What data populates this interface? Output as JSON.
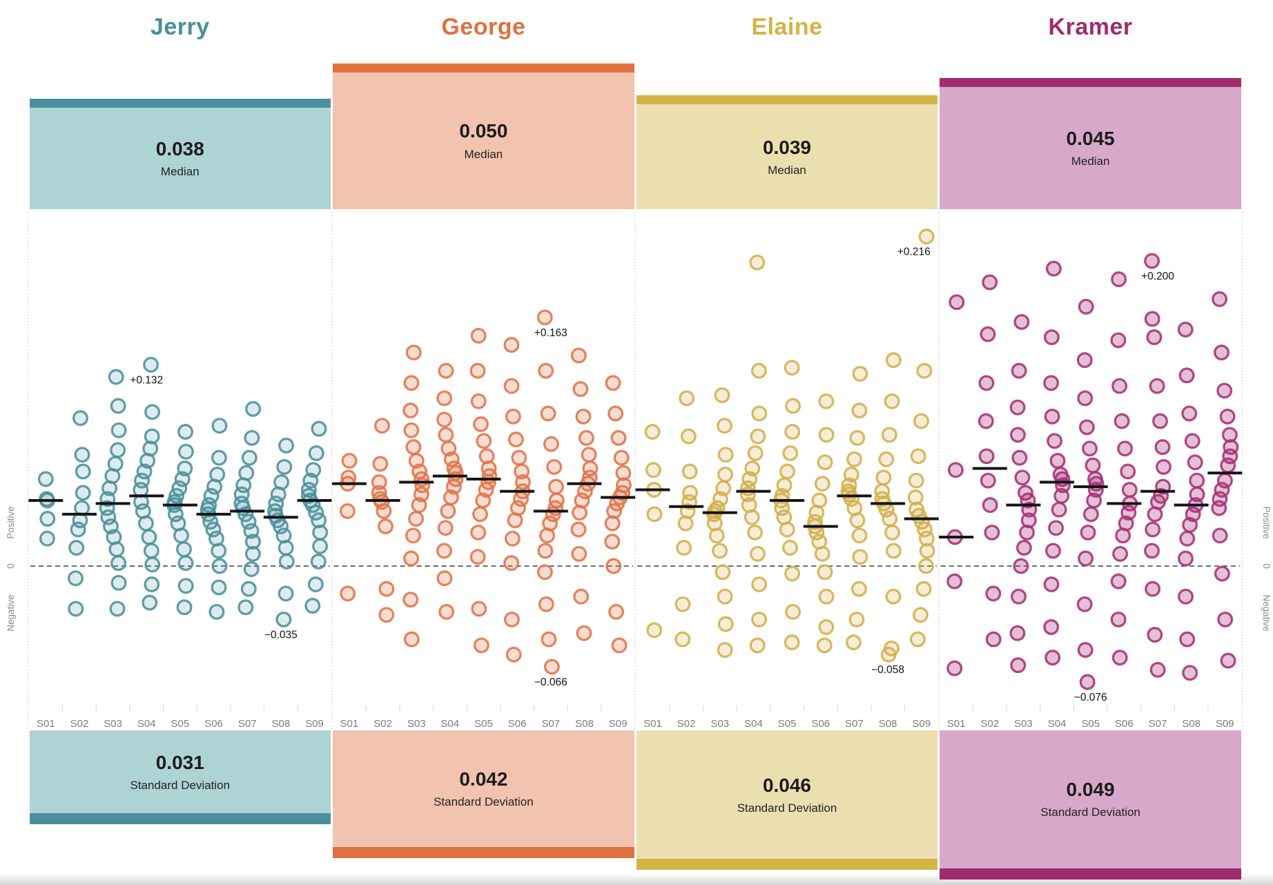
{
  "page": {
    "median_label": "Median",
    "sd_label": "Standard Deviation",
    "side_axis": {
      "positive": "Positive",
      "zero": "0",
      "negative": "Negative"
    }
  },
  "chart_data": {
    "type": "scatter",
    "subtype": "jitter-strip-plot",
    "seasons": [
      "S01",
      "S02",
      "S03",
      "S04",
      "S05",
      "S06",
      "S07",
      "S08",
      "S09"
    ],
    "value_axis": {
      "zero": 0,
      "approx_range": [
        -0.095,
        0.235
      ],
      "zero_line_style": "dashed"
    },
    "characters": [
      {
        "name": "Jerry",
        "median": "0.038",
        "std_dev": "0.031",
        "colors": {
          "dark": "#4A8F9B",
          "light": "#AED3D5",
          "point": "#4A8F9B"
        },
        "fill_opacity": 0.18,
        "season_medians": [
          0.043,
          0.034,
          0.041,
          0.046,
          0.04,
          0.034,
          0.036,
          0.032,
          0.043
        ],
        "season_points": [
          [
            0.057,
            0.044,
            0.043,
            0.031,
            0.018
          ],
          [
            0.097,
            0.073,
            0.062,
            0.048,
            0.038,
            0.03,
            0.024,
            0.012,
            -0.008,
            -0.028
          ],
          [
            0.124,
            0.105,
            0.089,
            0.076,
            0.067,
            0.059,
            0.051,
            0.044,
            0.038,
            0.032,
            0.026,
            0.019,
            0.011,
            0.002,
            -0.011,
            -0.028
          ],
          [
            0.132,
            0.101,
            0.085,
            0.077,
            0.069,
            0.062,
            0.056,
            0.05,
            0.042,
            0.036,
            0.028,
            0.019,
            0.01,
            0.001,
            -0.012,
            -0.024
          ],
          [
            0.088,
            0.075,
            0.064,
            0.057,
            0.051,
            0.046,
            0.042,
            0.04,
            0.034,
            0.028,
            0.02,
            0.011,
            0.002,
            -0.013,
            -0.027
          ],
          [
            0.092,
            0.071,
            0.06,
            0.052,
            0.046,
            0.04,
            0.037,
            0.034,
            0.029,
            0.024,
            0.018,
            0.01,
            0.0,
            -0.014,
            -0.03
          ],
          [
            0.103,
            0.084,
            0.071,
            0.061,
            0.053,
            0.047,
            0.041,
            0.038,
            0.034,
            0.029,
            0.023,
            0.016,
            0.008,
            -0.002,
            -0.015,
            -0.027
          ],
          [
            0.079,
            0.065,
            0.055,
            0.047,
            0.041,
            0.036,
            0.033,
            0.03,
            0.026,
            0.02,
            0.012,
            0.003,
            -0.018,
            -0.035
          ],
          [
            0.09,
            0.074,
            0.063,
            0.056,
            0.05,
            0.046,
            0.043,
            0.04,
            0.035,
            0.03,
            0.022,
            0.013,
            0.003,
            -0.012,
            -0.026
          ]
        ],
        "annotations": [
          {
            "label": "+0.132",
            "season_index": 3,
            "value": 0.132
          },
          {
            "label": "−0.035",
            "season_index": 7,
            "value": -0.035
          }
        ]
      },
      {
        "name": "George",
        "median": "0.050",
        "std_dev": "0.042",
        "colors": {
          "dark": "#E0713F",
          "light": "#F2C3AE",
          "point": "#DF744A"
        },
        "fill_opacity": 0.25,
        "season_medians": [
          0.054,
          0.043,
          0.055,
          0.059,
          0.057,
          0.049,
          0.036,
          0.054,
          0.045
        ],
        "season_points": [
          [
            0.069,
            0.058,
            0.054,
            0.036,
            -0.018
          ],
          [
            0.092,
            0.067,
            0.055,
            0.048,
            0.044,
            0.042,
            0.036,
            0.026,
            -0.015,
            -0.032
          ],
          [
            0.14,
            0.12,
            0.102,
            0.089,
            0.078,
            0.069,
            0.062,
            0.057,
            0.053,
            0.047,
            0.04,
            0.031,
            0.02,
            0.005,
            -0.022,
            -0.048
          ],
          [
            0.128,
            0.11,
            0.096,
            0.086,
            0.077,
            0.07,
            0.064,
            0.061,
            0.057,
            0.052,
            0.045,
            0.036,
            0.025,
            0.01,
            -0.008,
            -0.03
          ],
          [
            0.151,
            0.128,
            0.108,
            0.093,
            0.082,
            0.072,
            0.064,
            0.059,
            0.055,
            0.05,
            0.043,
            0.034,
            0.022,
            0.006,
            -0.028,
            -0.052
          ],
          [
            0.145,
            0.118,
            0.098,
            0.083,
            0.071,
            0.062,
            0.055,
            0.049,
            0.044,
            0.038,
            0.03,
            0.018,
            0.002,
            -0.035,
            -0.058
          ],
          [
            0.163,
            0.128,
            0.1,
            0.08,
            0.065,
            0.052,
            0.043,
            0.038,
            0.034,
            0.028,
            0.02,
            0.01,
            -0.004,
            -0.025,
            -0.048,
            -0.066
          ],
          [
            0.138,
            0.116,
            0.098,
            0.084,
            0.073,
            0.064,
            0.058,
            0.054,
            0.049,
            0.043,
            0.035,
            0.024,
            0.008,
            -0.02,
            -0.044
          ],
          [
            0.12,
            0.1,
            0.084,
            0.071,
            0.061,
            0.053,
            0.048,
            0.045,
            0.041,
            0.036,
            0.028,
            0.016,
            0.0,
            -0.03,
            -0.052
          ]
        ],
        "annotations": [
          {
            "label": "+0.163",
            "season_index": 6,
            "value": 0.163
          },
          {
            "label": "−0.066",
            "season_index": 6,
            "value": -0.066
          }
        ]
      },
      {
        "name": "Elaine",
        "median": "0.039",
        "std_dev": "0.046",
        "colors": {
          "dark": "#D4B345",
          "light": "#EBDFAF",
          "point": "#D3AF4B"
        },
        "fill_opacity": 0.22,
        "season_medians": [
          0.05,
          0.039,
          0.035,
          0.049,
          0.043,
          0.026,
          0.046,
          0.041,
          0.031
        ],
        "season_points": [
          [
            0.088,
            0.063,
            0.05,
            0.034,
            -0.042
          ],
          [
            0.11,
            0.085,
            0.062,
            0.048,
            0.042,
            0.036,
            0.028,
            0.012,
            -0.025,
            -0.048
          ],
          [
            0.112,
            0.092,
            0.073,
            0.06,
            0.051,
            0.044,
            0.038,
            0.036,
            0.034,
            0.028,
            0.02,
            0.01,
            -0.004,
            -0.02,
            -0.038,
            -0.055
          ],
          [
            0.199,
            0.128,
            0.1,
            0.085,
            0.074,
            0.064,
            0.057,
            0.051,
            0.047,
            0.04,
            0.032,
            0.022,
            0.008,
            -0.012,
            -0.035,
            -0.052
          ],
          [
            0.13,
            0.105,
            0.088,
            0.074,
            0.062,
            0.053,
            0.046,
            0.043,
            0.038,
            0.032,
            0.024,
            0.012,
            -0.005,
            -0.03,
            -0.05
          ],
          [
            0.108,
            0.086,
            0.068,
            0.054,
            0.043,
            0.035,
            0.029,
            0.026,
            0.022,
            0.016,
            0.008,
            -0.004,
            -0.02,
            -0.04,
            -0.052
          ],
          [
            0.126,
            0.102,
            0.084,
            0.07,
            0.06,
            0.053,
            0.049,
            0.047,
            0.044,
            0.038,
            0.03,
            0.02,
            0.006,
            -0.015,
            -0.035,
            -0.05
          ],
          [
            0.135,
            0.108,
            0.086,
            0.07,
            0.058,
            0.049,
            0.044,
            0.041,
            0.037,
            0.031,
            0.022,
            0.01,
            -0.02,
            -0.054,
            -0.058
          ],
          [
            0.216,
            0.128,
            0.095,
            0.072,
            0.056,
            0.045,
            0.037,
            0.033,
            0.029,
            0.024,
            0.018,
            0.01,
            0.0,
            -0.015,
            -0.032,
            -0.048
          ]
        ],
        "annotations": [
          {
            "label": "+0.216",
            "season_index": 8,
            "value": 0.216
          },
          {
            "label": "−0.058",
            "season_index": 7,
            "value": -0.058
          }
        ]
      },
      {
        "name": "Kramer",
        "median": "0.045",
        "std_dev": "0.049",
        "colors": {
          "dark": "#A02C6E",
          "light": "#D7A8C9",
          "point": "#A63076"
        },
        "fill_opacity": 0.3,
        "season_medians": [
          0.019,
          0.064,
          0.04,
          0.055,
          0.052,
          0.041,
          0.049,
          0.04,
          0.061
        ],
        "season_points": [
          [
            0.173,
            0.063,
            0.019,
            -0.01,
            -0.067
          ],
          [
            0.186,
            0.152,
            0.12,
            0.095,
            0.072,
            0.056,
            0.04,
            0.022,
            -0.018,
            -0.048
          ],
          [
            0.16,
            0.128,
            0.104,
            0.086,
            0.071,
            0.058,
            0.048,
            0.043,
            0.037,
            0.03,
            0.022,
            0.012,
            0.0,
            -0.02,
            -0.044,
            -0.065
          ],
          [
            0.195,
            0.15,
            0.12,
            0.098,
            0.082,
            0.069,
            0.06,
            0.057,
            0.053,
            0.046,
            0.037,
            0.025,
            0.01,
            -0.012,
            -0.04,
            -0.06
          ],
          [
            0.17,
            0.135,
            0.11,
            0.091,
            0.077,
            0.066,
            0.057,
            0.054,
            0.05,
            0.043,
            0.034,
            0.022,
            0.005,
            -0.025,
            -0.055,
            -0.076
          ],
          [
            0.188,
            0.148,
            0.118,
            0.095,
            0.077,
            0.062,
            0.05,
            0.041,
            0.035,
            0.028,
            0.02,
            0.008,
            -0.01,
            -0.035,
            -0.06
          ],
          [
            0.2,
            0.162,
            0.15,
            0.118,
            0.095,
            0.078,
            0.065,
            0.052,
            0.046,
            0.042,
            0.034,
            0.024,
            0.01,
            -0.015,
            -0.045,
            -0.068
          ],
          [
            0.155,
            0.125,
            0.1,
            0.082,
            0.068,
            0.056,
            0.047,
            0.04,
            0.034,
            0.027,
            0.018,
            0.005,
            -0.02,
            -0.048,
            -0.07
          ],
          [
            0.175,
            0.14,
            0.115,
            0.098,
            0.086,
            0.078,
            0.072,
            0.066,
            0.056,
            0.05,
            0.044,
            0.038,
            0.02,
            -0.005,
            -0.035,
            -0.062
          ]
        ],
        "annotations": [
          {
            "label": "+0.200",
            "season_index": 6,
            "value": 0.2
          },
          {
            "label": "−0.076",
            "season_index": 4,
            "value": -0.076
          }
        ]
      }
    ]
  }
}
